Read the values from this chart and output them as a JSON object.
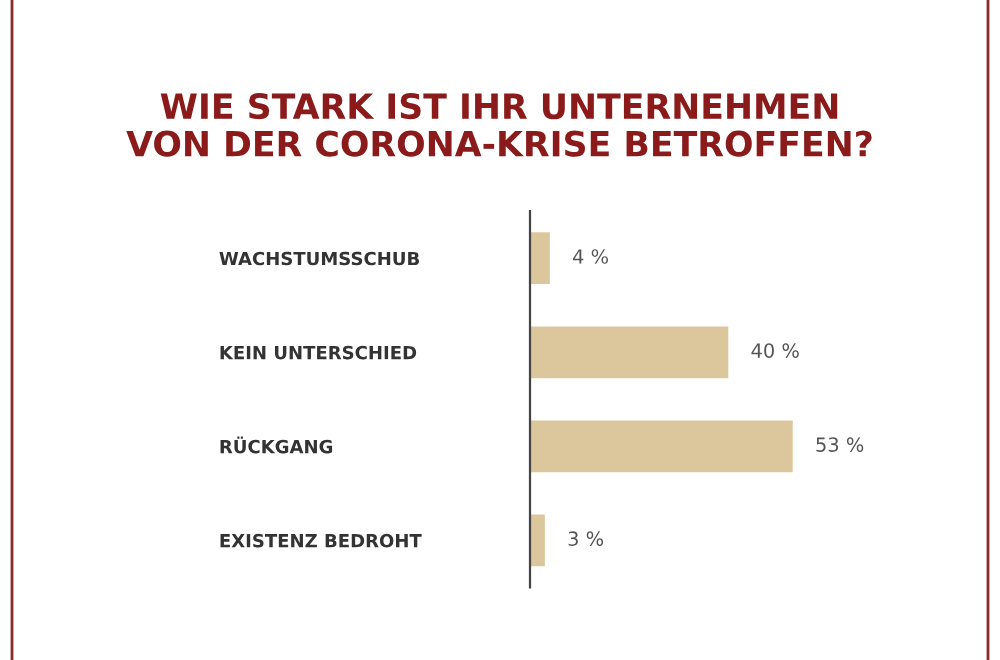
{
  "chart_data": {
    "type": "bar",
    "orientation": "horizontal",
    "title": "WIE STARK IST IHR UNTERNEHMEN\nVON DER CORONA-KRISE BETROFFEN?",
    "categories": [
      "WACHSTUMSSCHUB",
      "KEIN UNTERSCHIED",
      "RÜCKGANG",
      "EXISTENZ BEDROHT"
    ],
    "values": [
      4,
      40,
      53,
      3
    ],
    "value_labels": [
      "4 %",
      "40 %",
      "53 %",
      "3 %"
    ],
    "color": "#dcc69c",
    "tick_labels": "y",
    "grid": false,
    "legend": false
  }
}
